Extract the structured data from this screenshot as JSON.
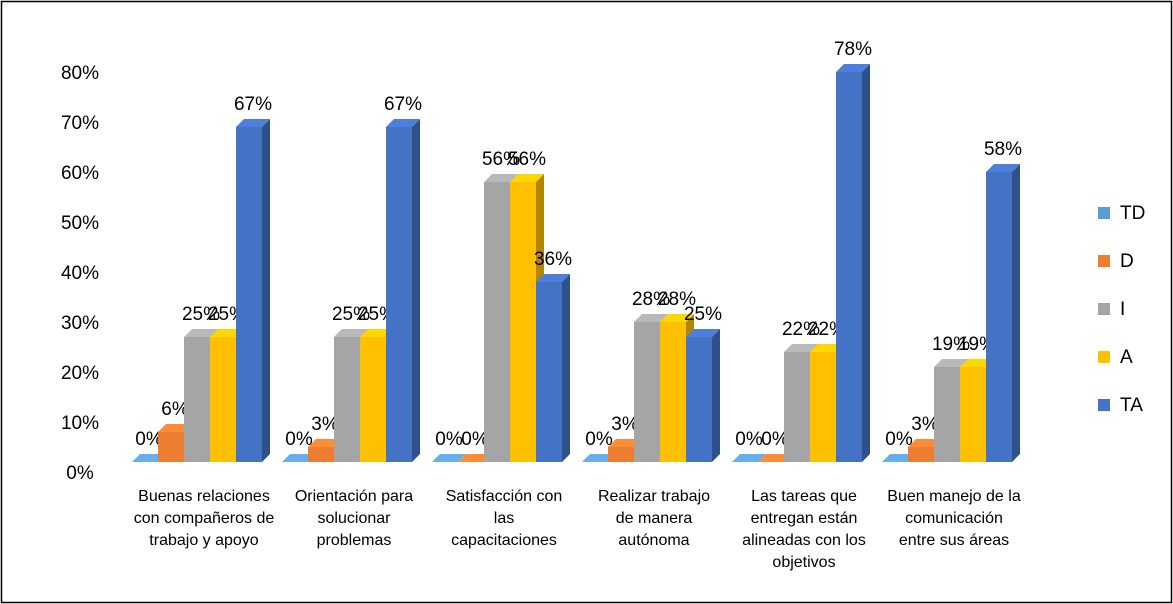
{
  "chart_data": {
    "type": "bar3d",
    "categories": [
      "Buenas relaciones con compañeros de trabajo y apoyo",
      "Orientación para solucionar problemas",
      "Satisfacción con las capacitaciones",
      "Realizar trabajo de manera autónoma",
      "Las tareas que entregan están alineadas con los objetivos",
      "Buen manejo de la comunicación entre sus áreas"
    ],
    "series": [
      {
        "name": "TD",
        "color": "#5b9bd5",
        "values": [
          0,
          0,
          0,
          0,
          0,
          0
        ],
        "value_labels": [
          "0%",
          "0%",
          "0%",
          "0%",
          "0%",
          "0%"
        ]
      },
      {
        "name": "D",
        "color": "#ed7d31",
        "values": [
          6,
          3,
          0,
          3,
          0,
          3
        ],
        "value_labels": [
          "6%",
          "3%",
          "0%",
          "3%",
          "0%",
          "3%"
        ]
      },
      {
        "name": "I",
        "color": "#a5a5a5",
        "values": [
          25,
          25,
          56,
          28,
          22,
          19
        ],
        "value_labels": [
          "25%",
          "25%",
          "56%",
          "28%",
          "22%",
          "19%"
        ]
      },
      {
        "name": "A",
        "color": "#ffc000",
        "values": [
          25,
          25,
          56,
          28,
          22,
          19
        ],
        "value_labels": [
          "25%",
          "25%",
          "56%",
          "28%",
          "22%",
          "19%"
        ]
      },
      {
        "name": "TA",
        "color": "#4472c4",
        "values": [
          67,
          67,
          36,
          25,
          78,
          58
        ],
        "value_labels": [
          "67%",
          "67%",
          "36%",
          "25%",
          "78%",
          "58%"
        ]
      }
    ],
    "ylim": [
      0,
      80
    ],
    "yticks": [
      {
        "value": 0,
        "label": "0%"
      },
      {
        "value": 10,
        "label": "10%"
      },
      {
        "value": 20,
        "label": "20%"
      },
      {
        "value": 30,
        "label": "30%"
      },
      {
        "value": 40,
        "label": "40%"
      },
      {
        "value": 50,
        "label": "50%"
      },
      {
        "value": 60,
        "label": "60%"
      },
      {
        "value": 70,
        "label": "70%"
      },
      {
        "value": 80,
        "label": "80%"
      }
    ],
    "legend": "right"
  }
}
